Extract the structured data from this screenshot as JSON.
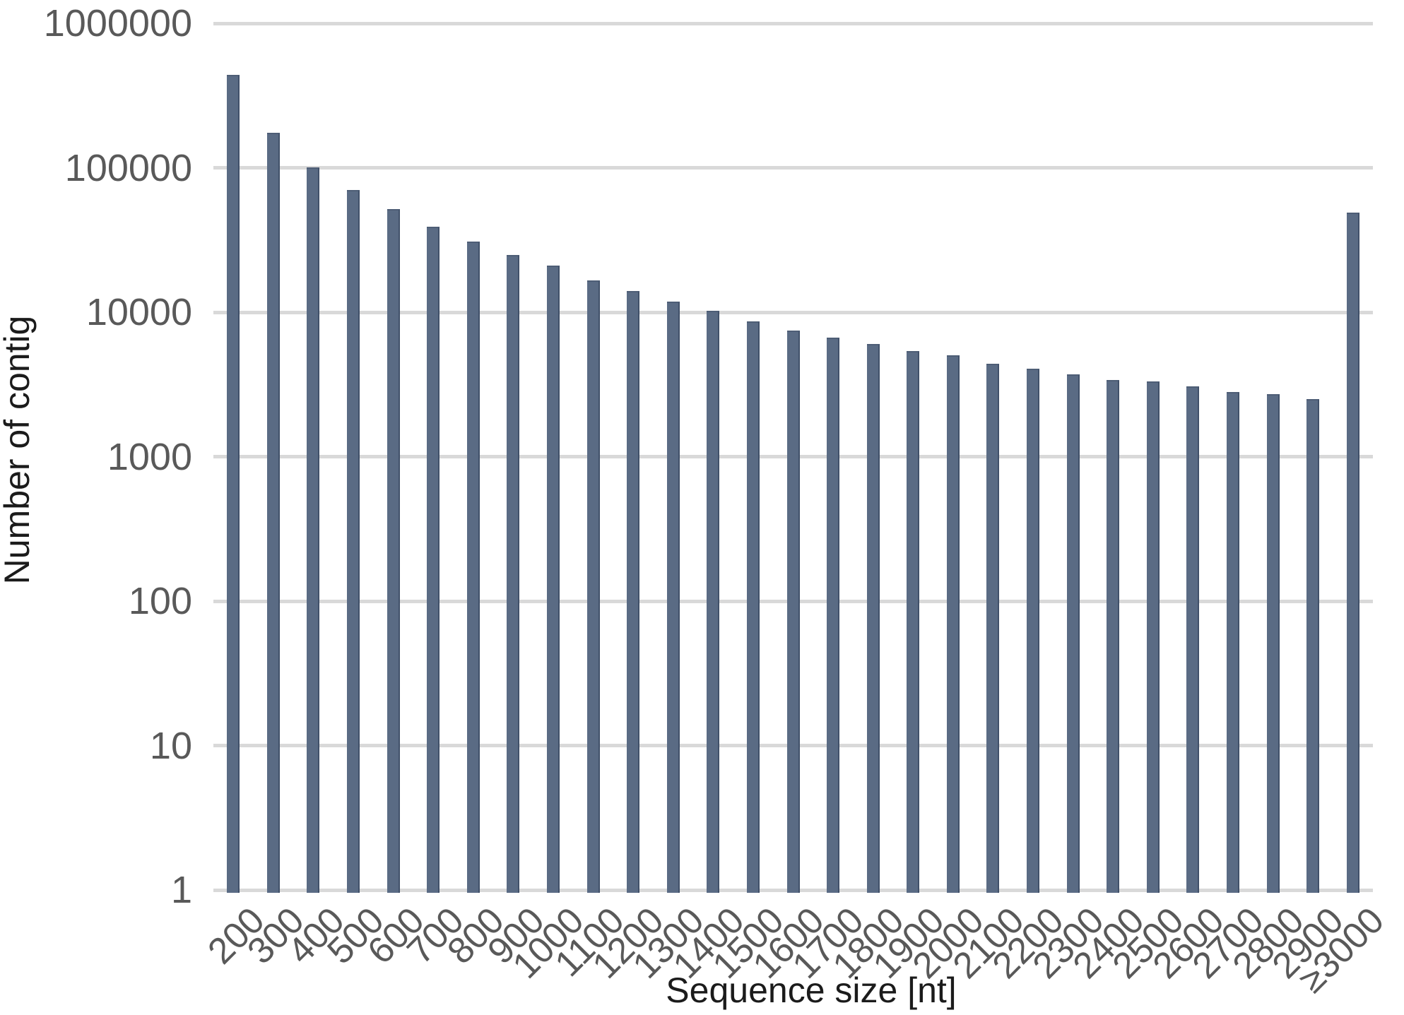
{
  "chart_data": {
    "type": "bar",
    "title": "",
    "xlabel": "Sequence size [nt]",
    "ylabel": "Number of contig",
    "y_scale": "log10",
    "ylim": [
      1,
      1000000
    ],
    "grid": "horizontal",
    "legend": "none",
    "y_tick_labels": [
      "1000000",
      "100000",
      "10000",
      "1000",
      "100",
      "10",
      "1"
    ],
    "categories": [
      "200",
      "300",
      "400",
      "500",
      "600",
      "700",
      "800",
      "900",
      "1000",
      "1100",
      "1200",
      "1300",
      "1400",
      "1500",
      "1600",
      "1700",
      "1800",
      "1900",
      "2000",
      "2100",
      "2200",
      "2300",
      "2400",
      "2500",
      "2600",
      "2700",
      "2800",
      "2900",
      "≥3000"
    ],
    "values": [
      440000,
      175000,
      101000,
      70000,
      52000,
      39000,
      31000,
      25000,
      21000,
      16600,
      14000,
      11800,
      10200,
      8650,
      7500,
      6700,
      6000,
      5400,
      5050,
      4400,
      4050,
      3700,
      3400,
      3300,
      3050,
      2800,
      2700,
      2500,
      49000
    ]
  },
  "colors": {
    "bar_fill": "#5a6b84",
    "bar_edge_dark": "#41516a",
    "bar_edge_top": "#4e5e76",
    "gridline": "#d9d9d9",
    "tick_label": "#595959",
    "axis_title": "#1b1b1b",
    "background": "#ffffff"
  }
}
